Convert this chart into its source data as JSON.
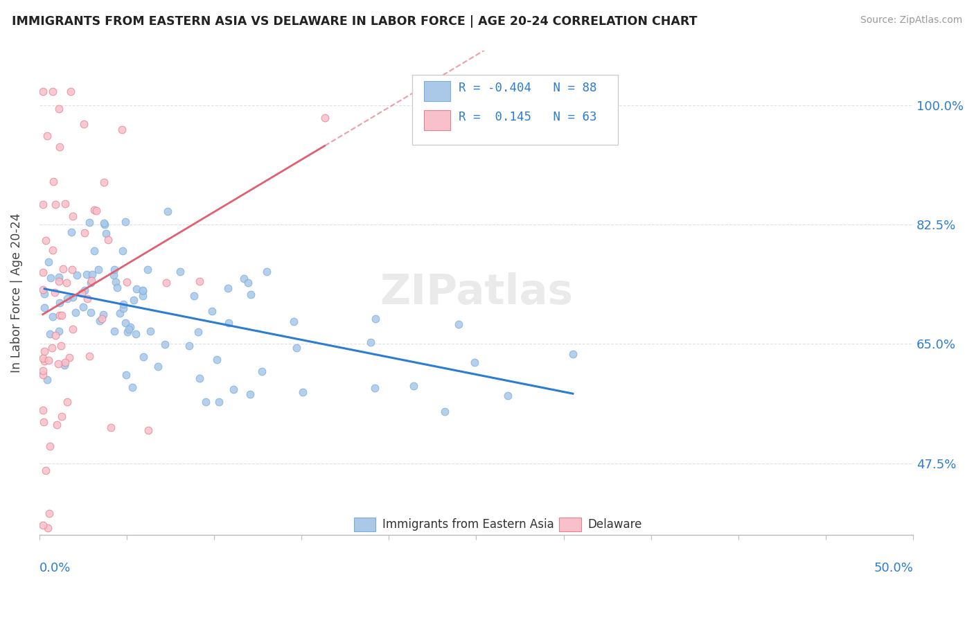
{
  "title": "IMMIGRANTS FROM EASTERN ASIA VS DELAWARE IN LABOR FORCE | AGE 20-24 CORRELATION CHART",
  "source": "Source: ZipAtlas.com",
  "ylabel": "In Labor Force | Age 20-24",
  "right_ytick_labels": [
    "47.5%",
    "65.0%",
    "82.5%",
    "100.0%"
  ],
  "right_ytick_vals": [
    0.475,
    0.65,
    0.825,
    1.0
  ],
  "xlim": [
    0.0,
    0.5
  ],
  "ylim": [
    0.37,
    1.08
  ],
  "blue_color": "#aac8e8",
  "blue_edge": "#7aade0",
  "blue_line_color": "#2b7cd3",
  "pink_color": "#f8c0cb",
  "pink_edge": "#e88090",
  "pink_line_color": "#e06070",
  "watermark": "ZIPatlas",
  "legend_R_blue": "R = -0.404",
  "legend_N_blue": "N = 88",
  "legend_R_pink": "R =  0.145",
  "legend_N_pink": "N = 63",
  "legend_text_color": "#2b7cd3",
  "background_color": "#ffffff",
  "grid_color": "#dddddd",
  "axis_label_color": "#2b7cd3",
  "title_color": "#222222",
  "source_color": "#999999"
}
